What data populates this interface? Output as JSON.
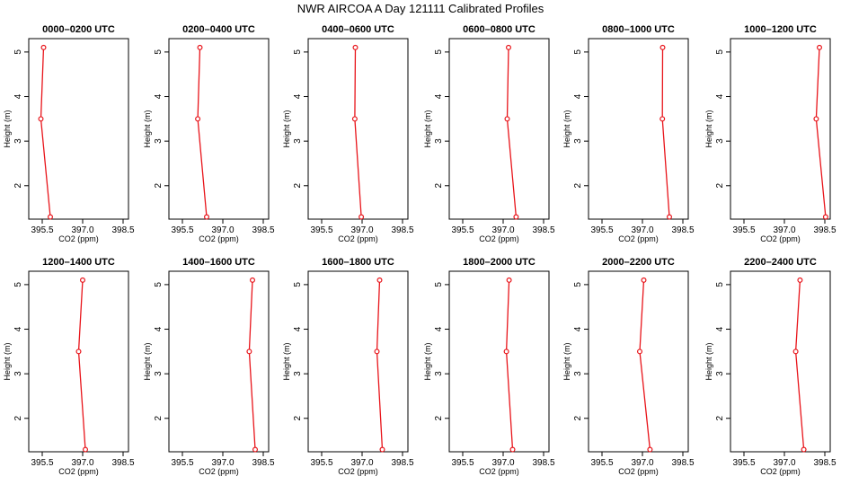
{
  "page": {
    "title": "NWR AIRCOA A  Day 121111  Calibrated Profiles"
  },
  "colors": {
    "series": "#e8141a",
    "axis": "#000000",
    "background": "#ffffff"
  },
  "chart_data": {
    "type": "line",
    "layout": "small-multiples",
    "rows": 2,
    "cols": 6,
    "grid": false,
    "legend": "none",
    "xlabel": "CO2 (ppm)",
    "ylabel": "Height (m)",
    "xlim": [
      395.0,
      398.7
    ],
    "ylim": [
      1.25,
      5.3
    ],
    "xticks": [
      395.5,
      397.0,
      398.5
    ],
    "xtick_labels": [
      "395.5",
      "397.0",
      "398.5"
    ],
    "yticks": [
      2,
      3,
      4,
      5
    ],
    "ytick_labels": [
      "2",
      "3",
      "4",
      "5"
    ],
    "panels": [
      {
        "title": "0000–0200 UTC",
        "x": [
          395.55,
          395.45,
          395.8
        ],
        "y": [
          5.1,
          3.5,
          1.3
        ]
      },
      {
        "title": "0200–0400 UTC",
        "x": [
          396.15,
          396.07,
          396.4
        ],
        "y": [
          5.1,
          3.5,
          1.3
        ]
      },
      {
        "title": "0400–0600 UTC",
        "x": [
          396.75,
          396.73,
          396.97
        ],
        "y": [
          5.1,
          3.5,
          1.3
        ]
      },
      {
        "title": "0600–0800 UTC",
        "x": [
          397.2,
          397.15,
          397.48
        ],
        "y": [
          5.1,
          3.5,
          1.3
        ]
      },
      {
        "title": "0800–1000 UTC",
        "x": [
          397.75,
          397.74,
          398.0
        ],
        "y": [
          5.1,
          3.5,
          1.3
        ]
      },
      {
        "title": "1000–1200 UTC",
        "x": [
          398.3,
          398.18,
          398.53
        ],
        "y": [
          5.1,
          3.5,
          1.3
        ]
      },
      {
        "title": "1200–1400 UTC",
        "x": [
          397.0,
          396.85,
          397.1
        ],
        "y": [
          5.1,
          3.5,
          1.3
        ]
      },
      {
        "title": "1400–1600 UTC",
        "x": [
          398.1,
          397.98,
          398.2
        ],
        "y": [
          5.1,
          3.5,
          1.3
        ]
      },
      {
        "title": "1600–1800 UTC",
        "x": [
          397.65,
          397.55,
          397.75
        ],
        "y": [
          5.1,
          3.5,
          1.3
        ]
      },
      {
        "title": "1800–2000 UTC",
        "x": [
          397.22,
          397.12,
          397.35
        ],
        "y": [
          5.1,
          3.5,
          1.3
        ]
      },
      {
        "title": "2000–2200 UTC",
        "x": [
          397.05,
          396.9,
          397.28
        ],
        "y": [
          5.1,
          3.5,
          1.3
        ]
      },
      {
        "title": "2200–2400 UTC",
        "x": [
          397.58,
          397.42,
          397.72
        ],
        "y": [
          5.1,
          3.5,
          1.3
        ]
      }
    ]
  }
}
